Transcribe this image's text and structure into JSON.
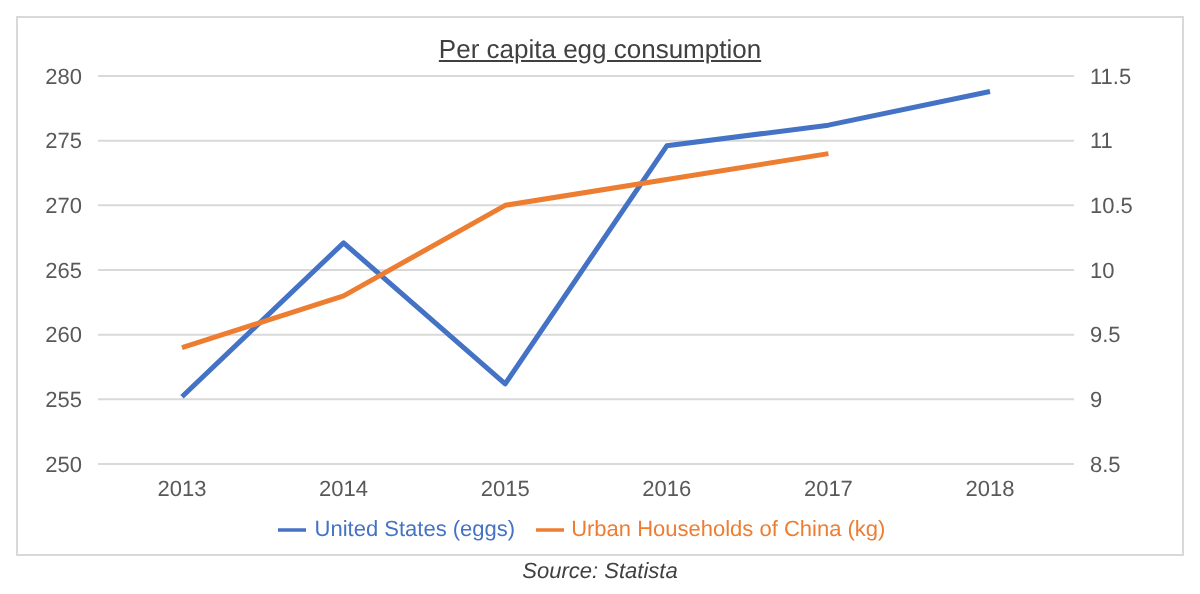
{
  "chart_data": {
    "type": "line",
    "title": "Per capita egg consumption",
    "categories": [
      "2013",
      "2014",
      "2015",
      "2016",
      "2017",
      "2018"
    ],
    "series": [
      {
        "name": "United States (eggs)",
        "color": "#4472c4",
        "values": [
          255.2,
          267.1,
          256.2,
          274.6,
          276.2,
          278.8
        ]
      },
      {
        "name": "Urban Households of China (kg)",
        "color": "#ed7d31",
        "axis": "y2",
        "values": [
          9.4,
          9.8,
          10.5,
          10.7,
          10.9,
          null
        ]
      }
    ],
    "ylim": [
      250,
      280
    ],
    "yticks": [
      250,
      255,
      260,
      265,
      270,
      275,
      280
    ],
    "y2lim": [
      8.5,
      11.5
    ],
    "y2ticks": [
      8.5,
      9,
      9.5,
      10,
      10.5,
      11,
      11.5
    ],
    "grid": "y",
    "legend": "bottom",
    "marker": "none",
    "line_style": "solid",
    "annotations": [
      "Source: Statista"
    ]
  }
}
